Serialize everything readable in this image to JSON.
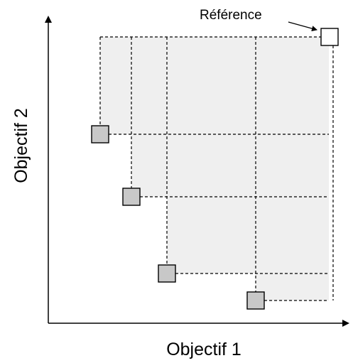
{
  "axes": {
    "x_label": "Objectif 1",
    "y_label": "Objectif 2"
  },
  "reference": {
    "label": "Référence",
    "fill": "#ffffff"
  },
  "pareto_points_count_fill": "#c8c8c8",
  "dominated_region_fill": "#efefef",
  "colors": {
    "axis": "#000000",
    "dashed_lines": "#000000"
  }
}
